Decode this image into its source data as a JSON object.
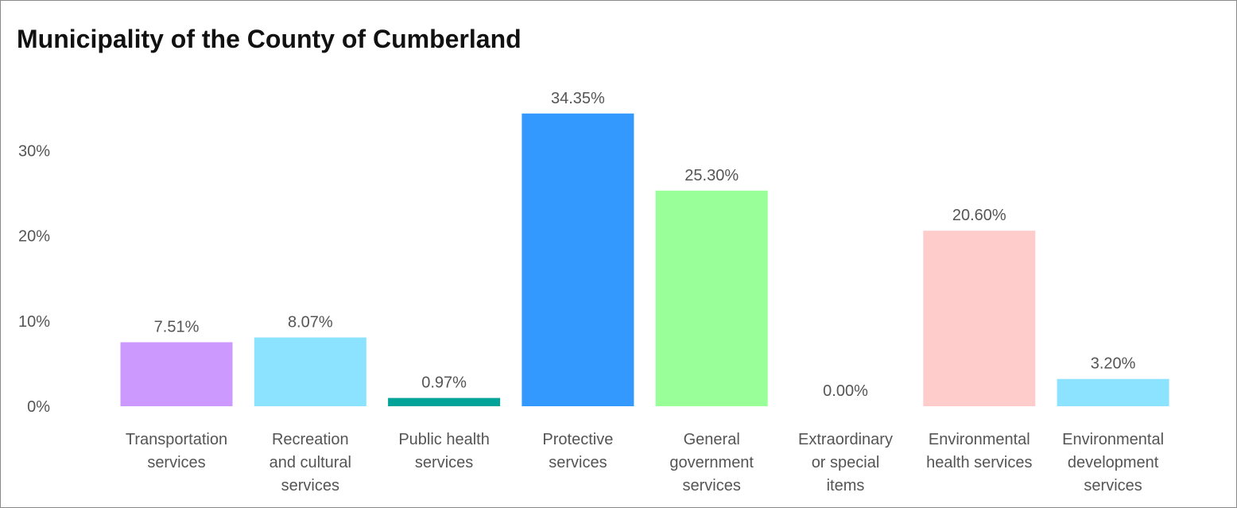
{
  "chart_data": {
    "type": "bar",
    "title": "Municipality of the County of Cumberland",
    "xlabel": "",
    "ylabel": "",
    "ylim": [
      0,
      35
    ],
    "yticks": [
      "0%",
      "10%",
      "20%",
      "30%"
    ],
    "ytick_values": [
      0,
      10,
      20,
      30
    ],
    "grid": false,
    "legend": "none",
    "categories": [
      [
        "Transportation",
        "services"
      ],
      [
        "Recreation",
        "and cultural",
        "services"
      ],
      [
        "Public health",
        "services"
      ],
      [
        "Protective",
        "services"
      ],
      [
        "General",
        "government",
        "services"
      ],
      [
        "Extraordinary",
        "or special",
        "items"
      ],
      [
        "Environmental",
        "health services"
      ],
      [
        "Environmental",
        "development",
        "services"
      ]
    ],
    "values": [
      7.51,
      8.07,
      0.97,
      34.35,
      25.3,
      0.0,
      20.6,
      3.2
    ],
    "data_labels": [
      "7.51%",
      "8.07%",
      "0.97%",
      "34.35%",
      "25.30%",
      "0.00%",
      "20.60%",
      "3.20%"
    ],
    "colors": [
      "#cc99ff",
      "#8ce3ff",
      "#00a398",
      "#3399ff",
      "#99ff99",
      "#b3b3b3",
      "#ffcccc",
      "#8ce3ff"
    ]
  }
}
